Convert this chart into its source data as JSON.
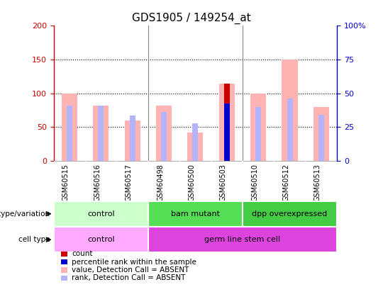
{
  "title": "GDS1905 / 149254_at",
  "samples": [
    "GSM60515",
    "GSM60516",
    "GSM60517",
    "GSM60498",
    "GSM60500",
    "GSM60503",
    "GSM60510",
    "GSM60512",
    "GSM60513"
  ],
  "value_absent": [
    100,
    82,
    60,
    82,
    42,
    114,
    100,
    150,
    80
  ],
  "rank_absent": [
    82,
    82,
    67,
    72,
    55,
    85,
    80,
    92,
    68
  ],
  "count": [
    0,
    0,
    0,
    0,
    0,
    114,
    0,
    0,
    0
  ],
  "percentile_rank": [
    0,
    0,
    0,
    0,
    0,
    85,
    0,
    0,
    0
  ],
  "ylim_left": [
    0,
    200
  ],
  "ylim_right": [
    0,
    100
  ],
  "yticks_left": [
    0,
    50,
    100,
    150,
    200
  ],
  "yticks_right": [
    0,
    25,
    50,
    75,
    100
  ],
  "ytick_labels_right": [
    "0",
    "25",
    "50",
    "75",
    "100%"
  ],
  "color_value_absent": "#ffb3b3",
  "color_rank_absent": "#b3b3ff",
  "color_count": "#cc0000",
  "color_percentile": "#0000cc",
  "bg_plot": "#ffffff",
  "bg_xlabels": "#cccccc",
  "genotype_groups": [
    {
      "label": "control",
      "start": 0,
      "end": 3,
      "color": "#ccffcc"
    },
    {
      "label": "bam mutant",
      "start": 3,
      "end": 6,
      "color": "#55dd55"
    },
    {
      "label": "dpp overexpressed",
      "start": 6,
      "end": 9,
      "color": "#44cc44"
    }
  ],
  "celltype_groups": [
    {
      "label": "control",
      "start": 0,
      "end": 3,
      "color": "#ffaaff"
    },
    {
      "label": "germ line stem cell",
      "start": 3,
      "end": 9,
      "color": "#dd44dd"
    }
  ],
  "left_axis_color": "#cc0000",
  "right_axis_color": "#0000cc",
  "value_bar_width": 0.5,
  "rank_bar_width": 0.18,
  "count_bar_width": 0.18,
  "legend_items": [
    {
      "color": "#cc0000",
      "label": "count"
    },
    {
      "color": "#0000cc",
      "label": "percentile rank within the sample"
    },
    {
      "color": "#ffb3b3",
      "label": "value, Detection Call = ABSENT"
    },
    {
      "color": "#b3b3ff",
      "label": "rank, Detection Call = ABSENT"
    }
  ]
}
